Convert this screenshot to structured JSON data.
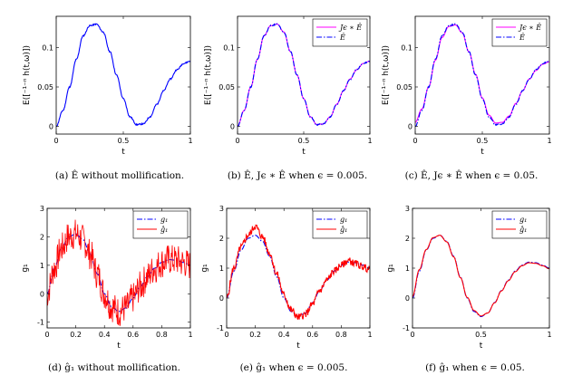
{
  "chart_data": [
    {
      "type": "line",
      "caption": "(a) Ê without mollification.",
      "xlabel": "t",
      "ylabel": "E([⁻¹⁻ⁿ h(t,ω)])",
      "xlim": [
        0,
        1
      ],
      "ylim": [
        -0.01,
        0.14
      ],
      "xticks": [
        0,
        0.5,
        1
      ],
      "xtick_labels": [
        "0",
        "0.5",
        "1"
      ],
      "yticks": [
        0,
        0.05,
        0.1
      ],
      "ytick_labels": [
        "0",
        "0.05",
        "0.1"
      ],
      "legend": null,
      "series": [
        {
          "color": "#0000ff",
          "dash": "solid",
          "noise": 0.0008,
          "seed": 11,
          "x": [
            0,
            0.05,
            0.1,
            0.15,
            0.2,
            0.25,
            0.3,
            0.35,
            0.4,
            0.45,
            0.5,
            0.55,
            0.6,
            0.65,
            0.7,
            0.75,
            0.8,
            0.85,
            0.9,
            0.95,
            1.0
          ],
          "y": [
            0.0,
            0.02,
            0.05,
            0.085,
            0.115,
            0.128,
            0.13,
            0.12,
            0.095,
            0.065,
            0.035,
            0.012,
            0.002,
            0.003,
            0.012,
            0.028,
            0.045,
            0.06,
            0.072,
            0.08,
            0.083
          ]
        }
      ]
    },
    {
      "type": "line",
      "caption": "(b) Ê, Jϵ ∗ Ê when ϵ = 0.005.",
      "xlabel": "t",
      "ylabel": "E([⁻¹⁻ⁿ h(t,ω)])",
      "xlim": [
        0,
        1
      ],
      "ylim": [
        -0.01,
        0.14
      ],
      "xticks": [
        0,
        0.5,
        1
      ],
      "xtick_labels": [
        "0",
        "0.5",
        "1"
      ],
      "yticks": [
        0,
        0.05,
        0.1
      ],
      "ytick_labels": [
        "0",
        "0.05",
        "0.1"
      ],
      "legend": "top-right",
      "series": [
        {
          "name": "Jϵ ∗ Ê",
          "color": "#ff00ff",
          "dash": "solid",
          "noise": 0.0,
          "seed": 3,
          "x": [
            0,
            0.05,
            0.1,
            0.15,
            0.2,
            0.25,
            0.3,
            0.35,
            0.4,
            0.45,
            0.5,
            0.55,
            0.6,
            0.65,
            0.7,
            0.75,
            0.8,
            0.85,
            0.9,
            0.95,
            1.0
          ],
          "y": [
            0.0,
            0.02,
            0.05,
            0.085,
            0.115,
            0.128,
            0.13,
            0.12,
            0.095,
            0.065,
            0.035,
            0.012,
            0.002,
            0.003,
            0.012,
            0.028,
            0.045,
            0.06,
            0.072,
            0.08,
            0.083
          ]
        },
        {
          "name": "Ê",
          "color": "#0000ff",
          "dash": "dashdot",
          "noise": 0.0008,
          "seed": 11,
          "x": [
            0,
            0.05,
            0.1,
            0.15,
            0.2,
            0.25,
            0.3,
            0.35,
            0.4,
            0.45,
            0.5,
            0.55,
            0.6,
            0.65,
            0.7,
            0.75,
            0.8,
            0.85,
            0.9,
            0.95,
            1.0
          ],
          "y": [
            0.0,
            0.02,
            0.05,
            0.085,
            0.115,
            0.128,
            0.13,
            0.12,
            0.095,
            0.065,
            0.035,
            0.012,
            0.002,
            0.003,
            0.012,
            0.028,
            0.045,
            0.06,
            0.072,
            0.08,
            0.083
          ]
        }
      ]
    },
    {
      "type": "line",
      "caption": "(c) Ê, Jϵ ∗ Ê when ϵ = 0.05.",
      "xlabel": "t",
      "ylabel": "E([⁻¹⁻ⁿ h(t,ω)])",
      "xlim": [
        0,
        1
      ],
      "ylim": [
        -0.01,
        0.14
      ],
      "xticks": [
        0,
        0.5,
        1
      ],
      "xtick_labels": [
        "0",
        "0.5",
        "1"
      ],
      "yticks": [
        0,
        0.05,
        0.1
      ],
      "ytick_labels": [
        "0",
        "0.05",
        "0.1"
      ],
      "legend": "top-right",
      "series": [
        {
          "name": "Jϵ ∗ Ê",
          "color": "#ff00ff",
          "dash": "solid",
          "noise": 0.0,
          "seed": 4,
          "x": [
            0,
            0.05,
            0.1,
            0.15,
            0.2,
            0.25,
            0.3,
            0.35,
            0.4,
            0.45,
            0.5,
            0.55,
            0.6,
            0.65,
            0.7,
            0.75,
            0.8,
            0.85,
            0.9,
            0.95,
            1.0
          ],
          "y": [
            0.005,
            0.022,
            0.05,
            0.084,
            0.113,
            0.127,
            0.129,
            0.119,
            0.095,
            0.066,
            0.036,
            0.014,
            0.004,
            0.005,
            0.013,
            0.029,
            0.045,
            0.06,
            0.071,
            0.079,
            0.082
          ]
        },
        {
          "name": "Ê",
          "color": "#0000ff",
          "dash": "dashdot",
          "noise": 0.0008,
          "seed": 11,
          "x": [
            0,
            0.05,
            0.1,
            0.15,
            0.2,
            0.25,
            0.3,
            0.35,
            0.4,
            0.45,
            0.5,
            0.55,
            0.6,
            0.65,
            0.7,
            0.75,
            0.8,
            0.85,
            0.9,
            0.95,
            1.0
          ],
          "y": [
            0.0,
            0.02,
            0.05,
            0.085,
            0.115,
            0.128,
            0.13,
            0.12,
            0.095,
            0.065,
            0.035,
            0.012,
            0.002,
            0.003,
            0.012,
            0.028,
            0.045,
            0.06,
            0.072,
            0.08,
            0.083
          ]
        }
      ]
    },
    {
      "type": "line",
      "caption": "(d) ĝ₁ without mollification.",
      "xlabel": "t",
      "ylabel": "g₁",
      "xlim": [
        0,
        1
      ],
      "ylim": [
        -1.2,
        3
      ],
      "xticks": [
        0,
        0.2,
        0.4,
        0.6,
        0.8,
        1
      ],
      "xtick_labels": [
        "0",
        "0.2",
        "0.4",
        "0.6",
        "0.8",
        "1"
      ],
      "yticks": [
        -1,
        0,
        1,
        2,
        3
      ],
      "ytick_labels": [
        "-1",
        "0",
        "1",
        "2",
        "3"
      ],
      "legend": "top-right",
      "series": [
        {
          "name": "g₁",
          "color": "#0000ff",
          "dash": "dashdot",
          "noise": 0.0,
          "seed": 1,
          "x": [
            0,
            0.05,
            0.1,
            0.15,
            0.2,
            0.25,
            0.3,
            0.35,
            0.4,
            0.45,
            0.5,
            0.55,
            0.6,
            0.65,
            0.7,
            0.75,
            0.8,
            0.85,
            0.9,
            0.95,
            1.0
          ],
          "y": [
            0.0,
            0.9,
            1.6,
            2.0,
            2.1,
            1.9,
            1.4,
            0.7,
            0.0,
            -0.45,
            -0.62,
            -0.5,
            -0.15,
            0.25,
            0.6,
            0.9,
            1.1,
            1.2,
            1.18,
            1.1,
            1.0
          ]
        },
        {
          "name": "ĝ₁",
          "color": "#ff0000",
          "dash": "solid",
          "noise": 0.55,
          "seed": 7,
          "x": [
            0,
            0.05,
            0.1,
            0.15,
            0.2,
            0.25,
            0.3,
            0.35,
            0.4,
            0.45,
            0.5,
            0.55,
            0.6,
            0.65,
            0.7,
            0.75,
            0.8,
            0.85,
            0.9,
            0.95,
            1.0
          ],
          "y": [
            0.0,
            0.9,
            1.6,
            2.0,
            2.1,
            1.9,
            1.4,
            0.7,
            0.0,
            -0.45,
            -0.62,
            -0.5,
            -0.15,
            0.25,
            0.6,
            0.9,
            1.1,
            1.2,
            1.18,
            1.1,
            1.0
          ]
        }
      ]
    },
    {
      "type": "line",
      "caption": "(e) ĝ₁ when ϵ = 0.005.",
      "xlabel": "t",
      "ylabel": "g₁",
      "xlim": [
        0,
        1
      ],
      "ylim": [
        -1,
        3
      ],
      "xticks": [
        0,
        0.2,
        0.4,
        0.6,
        0.8,
        1
      ],
      "xtick_labels": [
        "0",
        "0.2",
        "0.4",
        "0.6",
        "0.8",
        "1"
      ],
      "yticks": [
        -1,
        0,
        1,
        2,
        3
      ],
      "ytick_labels": [
        "-1",
        "0",
        "1",
        "2",
        "3"
      ],
      "legend": "top-right",
      "series": [
        {
          "name": "g₁",
          "color": "#0000ff",
          "dash": "dashdot",
          "noise": 0.0,
          "seed": 1,
          "x": [
            0,
            0.05,
            0.1,
            0.15,
            0.2,
            0.25,
            0.3,
            0.35,
            0.4,
            0.45,
            0.5,
            0.55,
            0.6,
            0.65,
            0.7,
            0.75,
            0.8,
            0.85,
            0.9,
            0.95,
            1.0
          ],
          "y": [
            0.0,
            0.9,
            1.6,
            2.0,
            2.1,
            1.9,
            1.4,
            0.7,
            0.0,
            -0.45,
            -0.62,
            -0.5,
            -0.15,
            0.25,
            0.6,
            0.9,
            1.1,
            1.2,
            1.18,
            1.1,
            1.0
          ]
        },
        {
          "name": "ĝ₁",
          "color": "#ff0000",
          "dash": "solid",
          "noise": 0.12,
          "seed": 5,
          "x": [
            0,
            0.05,
            0.1,
            0.15,
            0.2,
            0.25,
            0.3,
            0.35,
            0.4,
            0.45,
            0.5,
            0.55,
            0.6,
            0.65,
            0.7,
            0.75,
            0.8,
            0.85,
            0.9,
            0.95,
            1.0
          ],
          "y": [
            0.0,
            1.0,
            1.7,
            2.1,
            2.4,
            2.05,
            1.5,
            0.8,
            0.1,
            -0.4,
            -0.65,
            -0.55,
            -0.2,
            0.25,
            0.6,
            0.9,
            1.1,
            1.25,
            1.15,
            1.05,
            0.95
          ]
        }
      ]
    },
    {
      "type": "line",
      "caption": "(f) ĝ₁ when ϵ = 0.05.",
      "xlabel": "t",
      "ylabel": "g₁",
      "xlim": [
        0,
        1
      ],
      "ylim": [
        -1,
        3
      ],
      "xticks": [
        0,
        0.5,
        1
      ],
      "xtick_labels": [
        "0",
        "0.5",
        "1"
      ],
      "yticks": [
        -1,
        0,
        1,
        2,
        3
      ],
      "ytick_labels": [
        "-1",
        "0",
        "1",
        "2",
        "3"
      ],
      "legend": "top-right",
      "series": [
        {
          "name": "g₁",
          "color": "#0000ff",
          "dash": "dashdot",
          "noise": 0.0,
          "seed": 1,
          "x": [
            0,
            0.05,
            0.1,
            0.15,
            0.2,
            0.25,
            0.3,
            0.35,
            0.4,
            0.45,
            0.5,
            0.55,
            0.6,
            0.65,
            0.7,
            0.75,
            0.8,
            0.85,
            0.9,
            0.95,
            1.0
          ],
          "y": [
            0.0,
            0.9,
            1.6,
            2.0,
            2.1,
            1.9,
            1.4,
            0.7,
            0.0,
            -0.45,
            -0.62,
            -0.5,
            -0.15,
            0.25,
            0.6,
            0.9,
            1.1,
            1.2,
            1.18,
            1.1,
            1.0
          ]
        },
        {
          "name": "ĝ₁",
          "color": "#ff0000",
          "dash": "solid",
          "noise": 0.0,
          "seed": 2,
          "x": [
            0,
            0.05,
            0.1,
            0.15,
            0.2,
            0.25,
            0.3,
            0.35,
            0.4,
            0.45,
            0.5,
            0.55,
            0.6,
            0.65,
            0.7,
            0.75,
            0.8,
            0.85,
            0.9,
            0.95,
            1.0
          ],
          "y": [
            0.05,
            0.95,
            1.62,
            2.02,
            2.1,
            1.88,
            1.38,
            0.68,
            0.02,
            -0.42,
            -0.6,
            -0.5,
            -0.16,
            0.24,
            0.58,
            0.88,
            1.08,
            1.18,
            1.16,
            1.08,
            0.98
          ]
        }
      ]
    }
  ]
}
